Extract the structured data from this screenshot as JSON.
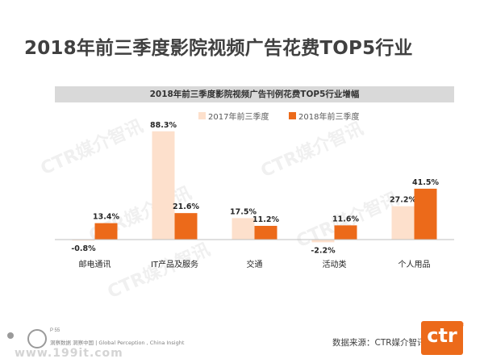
{
  "slide_title": "2018年前三季度影院视频广告花费TOP5行业",
  "watermark_text": "CTR媒介智讯",
  "footer": {
    "source": "数据来源：CTR媒介智讯",
    "page_label": "P 55",
    "tagline": "洞察数据 洞察中国 | Global Perception , China Insight",
    "site_watermark": "www.199it.com",
    "logo_text": "ctr",
    "logo_mark": "®"
  },
  "chart_data": {
    "type": "bar",
    "title": "2018年前三季度影院视频广告刊例花费TOP5行业增幅",
    "categories": [
      "邮电通讯",
      "IT产品及服务",
      "交通",
      "活动类",
      "个人用品"
    ],
    "series": [
      {
        "name": "2017年前三季度",
        "values": [
          -0.8,
          88.3,
          17.5,
          -2.2,
          27.2
        ],
        "labels": [
          "-0.8%",
          "88.3%",
          "17.5%",
          "-2.2%",
          "27.2%"
        ],
        "color": "#fde0cc"
      },
      {
        "name": "2018年前三季度",
        "values": [
          13.4,
          21.6,
          11.2,
          11.6,
          41.5
        ],
        "labels": [
          "13.4%",
          "21.6%",
          "11.2%",
          "11.6%",
          "41.5%"
        ],
        "color": "#ec6a1a"
      }
    ],
    "ylim": [
      -5,
      95
    ],
    "grid": false,
    "legend": "top-right",
    "xlabel": "",
    "ylabel": ""
  }
}
